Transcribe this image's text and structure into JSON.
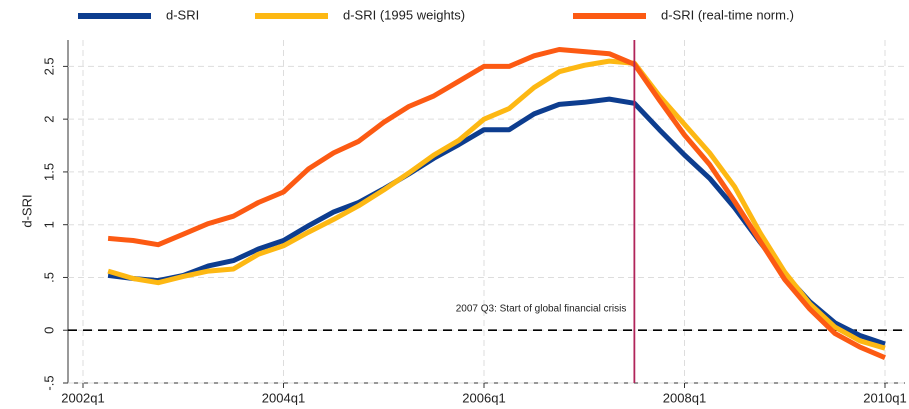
{
  "chart_data": {
    "type": "line",
    "x": [
      "2002q2",
      "2002q3",
      "2002q4",
      "2003q1",
      "2003q2",
      "2003q3",
      "2003q4",
      "2004q1",
      "2004q2",
      "2004q3",
      "2004q4",
      "2005q1",
      "2005q2",
      "2005q3",
      "2005q4",
      "2006q1",
      "2006q2",
      "2006q3",
      "2006q4",
      "2007q1",
      "2007q2",
      "2007q3",
      "2007q4",
      "2008q1",
      "2008q2",
      "2008q3",
      "2008q4",
      "2009q1",
      "2009q2",
      "2009q3",
      "2009q4",
      "2010q1"
    ],
    "series": [
      {
        "name": "d-SRI",
        "color": "#0d3d8f",
        "values": [
          0.52,
          0.49,
          0.47,
          0.52,
          0.61,
          0.66,
          0.77,
          0.85,
          0.99,
          1.12,
          1.21,
          1.34,
          1.48,
          1.63,
          1.76,
          1.9,
          1.9,
          2.05,
          2.14,
          2.16,
          2.19,
          2.15,
          1.9,
          1.66,
          1.44,
          1.16,
          0.84,
          0.53,
          0.27,
          0.07,
          -0.05,
          -0.13
        ]
      },
      {
        "name": "d-SRI (1995 weights)",
        "color": "#fdb813",
        "values": [
          0.56,
          0.49,
          0.45,
          0.51,
          0.56,
          0.58,
          0.72,
          0.8,
          0.93,
          1.05,
          1.18,
          1.33,
          1.49,
          1.66,
          1.8,
          2.0,
          2.1,
          2.3,
          2.45,
          2.51,
          2.55,
          2.53,
          2.22,
          1.95,
          1.68,
          1.36,
          0.93,
          0.55,
          0.25,
          0.03,
          -0.1,
          -0.17
        ]
      },
      {
        "name": "d-SRI (real-time norm.)",
        "color": "#fc5a13",
        "values": [
          0.87,
          0.85,
          0.81,
          0.91,
          1.01,
          1.08,
          1.21,
          1.31,
          1.53,
          1.68,
          1.79,
          1.97,
          2.12,
          2.22,
          2.36,
          2.5,
          2.5,
          2.6,
          2.66,
          2.64,
          2.62,
          2.52,
          2.18,
          1.85,
          1.57,
          1.22,
          0.85,
          0.48,
          0.2,
          -0.03,
          -0.16,
          -0.26
        ]
      }
    ],
    "y_label": "d-SRI",
    "xlim": [
      "2002q1",
      "2010q1"
    ],
    "xticks": [
      "2002q1",
      "2004q1",
      "2006q1",
      "2008q1",
      "2010q1"
    ],
    "ylim": [
      -0.5,
      2.75
    ],
    "yticks": [
      {
        "value": -0.5,
        "label": "-.5"
      },
      0,
      {
        "value": 0.5,
        "label": ".5"
      },
      1,
      1.5,
      2,
      2.5
    ],
    "grid": true,
    "reference_hline": 0,
    "reference_vline": {
      "x": "2007q3",
      "label": "2007 Q3: Start of global financial crisis",
      "color": "#b0245a"
    }
  }
}
